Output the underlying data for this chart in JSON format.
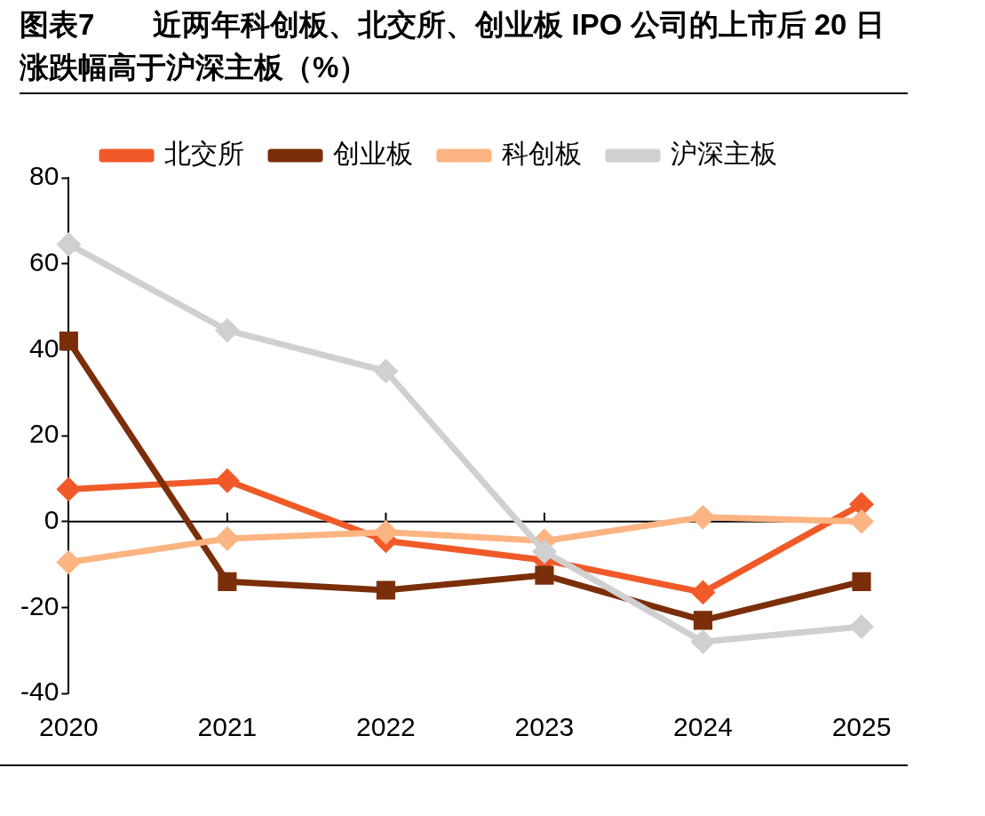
{
  "chart_data": {
    "type": "line",
    "title": "图表7　　近两年科创板、北交所、创业板 IPO 公司的上市后 20 日涨跌幅高于沪深主板（%）",
    "categories": [
      "2020",
      "2021",
      "2022",
      "2023",
      "2024",
      "2025"
    ],
    "series": [
      {
        "name": "北交所",
        "color": "#f05a28",
        "marker": "diamond",
        "values": [
          7.5,
          9.5,
          -4.5,
          -9,
          -16.5,
          4
        ]
      },
      {
        "name": "创业板",
        "color": "#7b2e0a",
        "marker": "square",
        "values": [
          42,
          -14,
          -16,
          -12.5,
          -23,
          -14
        ]
      },
      {
        "name": "科创板",
        "color": "#fbb482",
        "marker": "diamond",
        "values": [
          -9.5,
          -4,
          -2.5,
          -4.5,
          1,
          0
        ]
      },
      {
        "name": "沪深主板",
        "color": "#d0d0d0",
        "marker": "diamond",
        "values": [
          64.5,
          44.5,
          35,
          -7,
          -28,
          -24.5
        ]
      }
    ],
    "ylim": [
      -40,
      80
    ],
    "yticks": [
      -40,
      -20,
      0,
      20,
      40,
      60,
      80
    ],
    "ref_lines": [
      {
        "axis": "y",
        "value": 0
      }
    ],
    "grid": false,
    "legend": "top",
    "line_style": "solid"
  }
}
